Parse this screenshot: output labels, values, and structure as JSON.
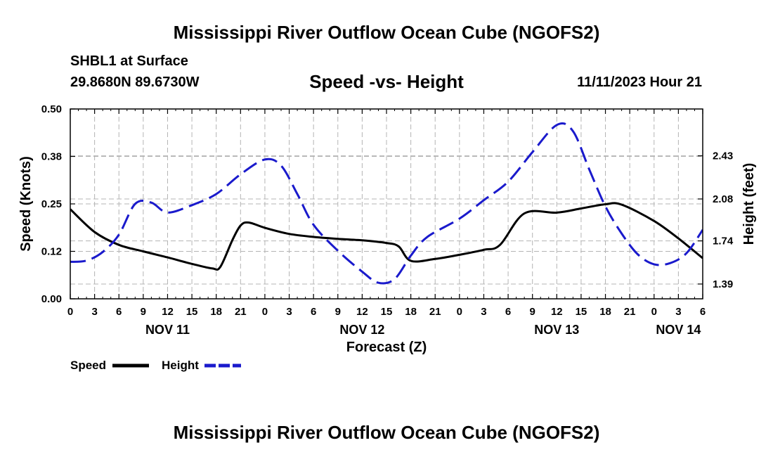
{
  "title": "Mississippi River Outflow Ocean Cube (NGOFS2)",
  "title_repeat": "Mississippi River Outflow Ocean Cube (NGOFS2)",
  "station": "SHBL1 at Surface",
  "coordinates": "29.8680N  89.6730W",
  "subtitle": "Speed -vs- Height",
  "datetime": "11/11/2023 Hour 21",
  "colors": {
    "speed": "#000000",
    "height": "#1a1acc",
    "grid": "#b4b4b4"
  },
  "chart_data": {
    "type": "line",
    "title": "Speed -vs- Height",
    "xlabel": "Forecast (Z)",
    "ylabel": "Speed (Knots)",
    "ylabel_right": "Height (feet)",
    "x_unit": "hours from Nov 11 00Z",
    "xlim": [
      0,
      78
    ],
    "ylim": [
      0,
      0.5
    ],
    "ylim_right": [
      1.27,
      2.81
    ],
    "x_ticks": [
      0,
      3,
      6,
      9,
      12,
      15,
      18,
      21,
      24,
      27,
      30,
      33,
      36,
      39,
      42,
      45,
      48,
      51,
      54,
      57,
      60,
      63,
      66,
      69,
      72,
      75,
      78
    ],
    "x_tick_labels": [
      "0",
      "3",
      "6",
      "9",
      "12",
      "15",
      "18",
      "21",
      "0",
      "3",
      "6",
      "9",
      "12",
      "15",
      "18",
      "21",
      "0",
      "3",
      "6",
      "9",
      "12",
      "15",
      "18",
      "21",
      "0",
      "3",
      "6"
    ],
    "date_labels": [
      {
        "x": 12,
        "label": "NOV 11"
      },
      {
        "x": 36,
        "label": "NOV 12"
      },
      {
        "x": 60,
        "label": "NOV 13"
      },
      {
        "x": 75,
        "label": "NOV 14"
      }
    ],
    "y_ticks": [
      0.0,
      0.125,
      0.25,
      0.375,
      0.5
    ],
    "y_tick_labels": [
      "0.00",
      "0.12",
      "0.25",
      "0.38",
      "0.50"
    ],
    "y_ticks_right": [
      1.39,
      1.74,
      2.08,
      2.43
    ],
    "y_tick_labels_right": [
      "1.39",
      "1.74",
      "2.08",
      "2.43"
    ],
    "grid": true,
    "legend": [
      {
        "name": "Speed",
        "style": "solid"
      },
      {
        "name": "Height",
        "style": "dashed"
      }
    ],
    "series": [
      {
        "name": "Speed",
        "axis": "left",
        "style": "solid",
        "points": [
          [
            0,
            0.236
          ],
          [
            3,
            0.176
          ],
          [
            6,
            0.142
          ],
          [
            9,
            0.125
          ],
          [
            12,
            0.109
          ],
          [
            15,
            0.092
          ],
          [
            17.5,
            0.08
          ],
          [
            18.5,
            0.084
          ],
          [
            20,
            0.155
          ],
          [
            21,
            0.193
          ],
          [
            22,
            0.201
          ],
          [
            24,
            0.187
          ],
          [
            27,
            0.171
          ],
          [
            30,
            0.163
          ],
          [
            33,
            0.158
          ],
          [
            36,
            0.154
          ],
          [
            39,
            0.147
          ],
          [
            40.5,
            0.138
          ],
          [
            42,
            0.1
          ],
          [
            45,
            0.105
          ],
          [
            48,
            0.116
          ],
          [
            51,
            0.129
          ],
          [
            53,
            0.142
          ],
          [
            56,
            0.225
          ],
          [
            60,
            0.227
          ],
          [
            63,
            0.238
          ],
          [
            66,
            0.249
          ],
          [
            68,
            0.248
          ],
          [
            72,
            0.205
          ],
          [
            75,
            0.159
          ],
          [
            78,
            0.107
          ]
        ]
      },
      {
        "name": "Height",
        "axis": "right",
        "style": "dashed",
        "points": [
          [
            0,
            1.57
          ],
          [
            2,
            1.58
          ],
          [
            4,
            1.65
          ],
          [
            6,
            1.79
          ],
          [
            8,
            2.04
          ],
          [
            10,
            2.05
          ],
          [
            12,
            1.97
          ],
          [
            15,
            2.03
          ],
          [
            18,
            2.12
          ],
          [
            21,
            2.28
          ],
          [
            24,
            2.4
          ],
          [
            26,
            2.35
          ],
          [
            28,
            2.12
          ],
          [
            30,
            1.87
          ],
          [
            33,
            1.66
          ],
          [
            36,
            1.49
          ],
          [
            38,
            1.4
          ],
          [
            40,
            1.43
          ],
          [
            42,
            1.62
          ],
          [
            44,
            1.77
          ],
          [
            48,
            1.92
          ],
          [
            51,
            2.07
          ],
          [
            54,
            2.22
          ],
          [
            57,
            2.46
          ],
          [
            60,
            2.68
          ],
          [
            62,
            2.63
          ],
          [
            64,
            2.32
          ],
          [
            66,
            2.02
          ],
          [
            68,
            1.8
          ],
          [
            70,
            1.63
          ],
          [
            72,
            1.55
          ],
          [
            74,
            1.56
          ],
          [
            76,
            1.64
          ],
          [
            78,
            1.83
          ]
        ]
      }
    ]
  }
}
